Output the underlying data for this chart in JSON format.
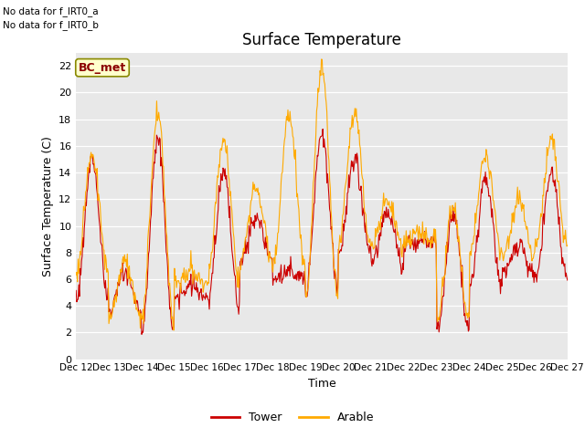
{
  "title": "Surface Temperature",
  "ylabel": "Surface Temperature (C)",
  "xlabel": "Time",
  "annotation1": "No data for f_IRT0_a",
  "annotation2": "No data for f_IRT0_b",
  "box_label": "BC_met",
  "legend_tower": "Tower",
  "legend_arable": "Arable",
  "color_tower": "#cc0000",
  "color_arable": "#ffaa00",
  "ylim": [
    0,
    23
  ],
  "yticks": [
    0,
    2,
    4,
    6,
    8,
    10,
    12,
    14,
    16,
    18,
    20,
    22
  ],
  "bg_color": "#e8e8e8",
  "x_tick_labels": [
    "Dec 12",
    "Dec 13",
    "Dec 14",
    "Dec 15",
    "Dec 16",
    "Dec 17",
    "Dec 18",
    "Dec 19",
    "Dec 20",
    "Dec 21",
    "Dec 22",
    "Dec 23",
    "Dec 24",
    "Dec 25",
    "Dec 26",
    "Dec 27"
  ],
  "n_days": 15,
  "pts_per_day": 48
}
